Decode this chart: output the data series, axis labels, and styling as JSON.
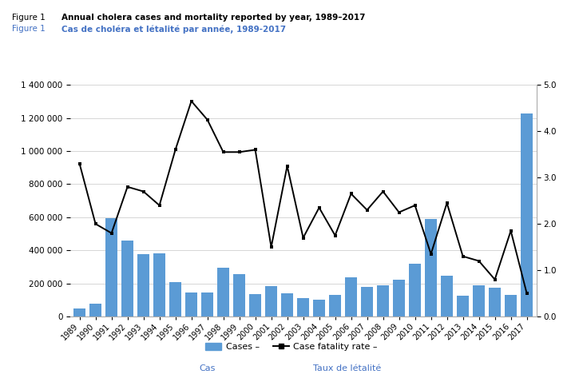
{
  "years": [
    1989,
    1990,
    1991,
    1992,
    1993,
    1994,
    1995,
    1996,
    1997,
    1998,
    1999,
    2000,
    2001,
    2002,
    2003,
    2004,
    2005,
    2006,
    2007,
    2008,
    2009,
    2010,
    2011,
    2012,
    2013,
    2014,
    2015,
    2016,
    2017
  ],
  "cases": [
    50000,
    78000,
    595000,
    461000,
    375000,
    384000,
    209000,
    147000,
    147000,
    293000,
    254000,
    137000,
    184000,
    142000,
    111000,
    101000,
    131000,
    236000,
    177000,
    190000,
    221000,
    317000,
    589000,
    245000,
    128000,
    190000,
    172000,
    132000,
    1227000
  ],
  "cfr": [
    3.3,
    2.0,
    1.8,
    2.8,
    2.7,
    2.4,
    3.6,
    4.65,
    4.25,
    3.55,
    3.55,
    3.6,
    1.5,
    3.25,
    1.7,
    2.35,
    1.75,
    2.65,
    2.3,
    2.7,
    2.25,
    2.4,
    1.35,
    2.45,
    1.3,
    1.2,
    0.8,
    1.85,
    0.5
  ],
  "bar_color": "#5B9BD5",
  "line_color": "#000000",
  "title_en": "Annual cholera cases and mortality reported by year, 1989–2017",
  "title_fr": "Cas de choléra et létalité par année, 1989-2017",
  "figure_label": "Figure 1",
  "ylim_left": [
    0,
    1400000
  ],
  "ylim_right": [
    0,
    5.0
  ],
  "yticks_left": [
    0,
    200000,
    400000,
    600000,
    800000,
    1000000,
    1200000,
    1400000
  ],
  "yticks_right": [
    0.0,
    1.0,
    2.0,
    3.0,
    4.0,
    5.0
  ],
  "legend_cases_en": "Cases –",
  "legend_cases_fr": "Cas",
  "legend_cfr_en": "Case fatality rate –",
  "legend_cfr_fr": "Taux de létalité",
  "background_color": "#ffffff",
  "grid_color": "#d0d0d0",
  "border_color": "#aaaaaa"
}
